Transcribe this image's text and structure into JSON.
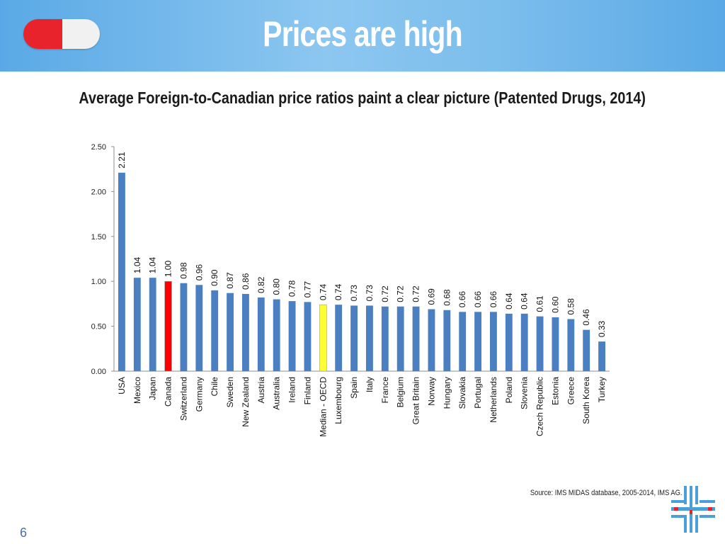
{
  "header": {
    "title": "Prices are high"
  },
  "subtitle": "Average Foreign-to-Canadian price ratios paint a clear picture (Patented Drugs, 2014)",
  "source": "Source: IMS MIDAS database, 2005-2014, IMS AG.",
  "page_number": "6",
  "colors": {
    "default_bar": "#4a7fc1",
    "canada_bar": "#ff0000",
    "median_bar": "#ffff33",
    "header_bg": "#6fb6ea"
  },
  "chart_data": {
    "type": "bar",
    "categories": [
      "USA",
      "Mexico",
      "Japan",
      "Canada",
      "Switzerland",
      "Germany",
      "Chile",
      "Sweden",
      "New Zealand",
      "Austria",
      "Australia",
      "Ireland",
      "Finland",
      "Median - OECD",
      "Luxembourg",
      "Spain",
      "Italy",
      "France",
      "Belgium",
      "Great Britain",
      "Norway",
      "Hungary",
      "Slovakia",
      "Portugal",
      "Netherlands",
      "Poland",
      "Slovenia",
      "Czech Republic",
      "Estonia",
      "Greece",
      "South Korea",
      "Turkey"
    ],
    "values": [
      2.21,
      1.04,
      1.04,
      1.0,
      0.98,
      0.96,
      0.9,
      0.87,
      0.86,
      0.82,
      0.8,
      0.78,
      0.77,
      0.74,
      0.74,
      0.73,
      0.73,
      0.72,
      0.72,
      0.72,
      0.69,
      0.68,
      0.66,
      0.66,
      0.66,
      0.64,
      0.64,
      0.61,
      0.6,
      0.58,
      0.46,
      0.33
    ],
    "value_labels": [
      "2.21",
      "1.04",
      "1.04",
      "1.00",
      "0.98",
      "0.96",
      "0.90",
      "0.87",
      "0.86",
      "0.82",
      "0.80",
      "0.78",
      "0.77",
      "0.74",
      "0.74",
      "0.73",
      "0.73",
      "0.72",
      "0.72",
      "0.72",
      "0.69",
      "0.68",
      "0.66",
      "0.66",
      "0.66",
      "0.64",
      "0.64",
      "0.61",
      "0.60",
      "0.58",
      "0.46",
      "0.33"
    ],
    "highlight": {
      "Canada": "#ff0000",
      "Median - OECD": "#ffff33"
    },
    "y_ticks": [
      "0.00",
      "0.50",
      "1.00",
      "1.50",
      "2.00",
      "2.50"
    ],
    "ylim": [
      0,
      2.5
    ],
    "grid": false,
    "legend": "none"
  }
}
